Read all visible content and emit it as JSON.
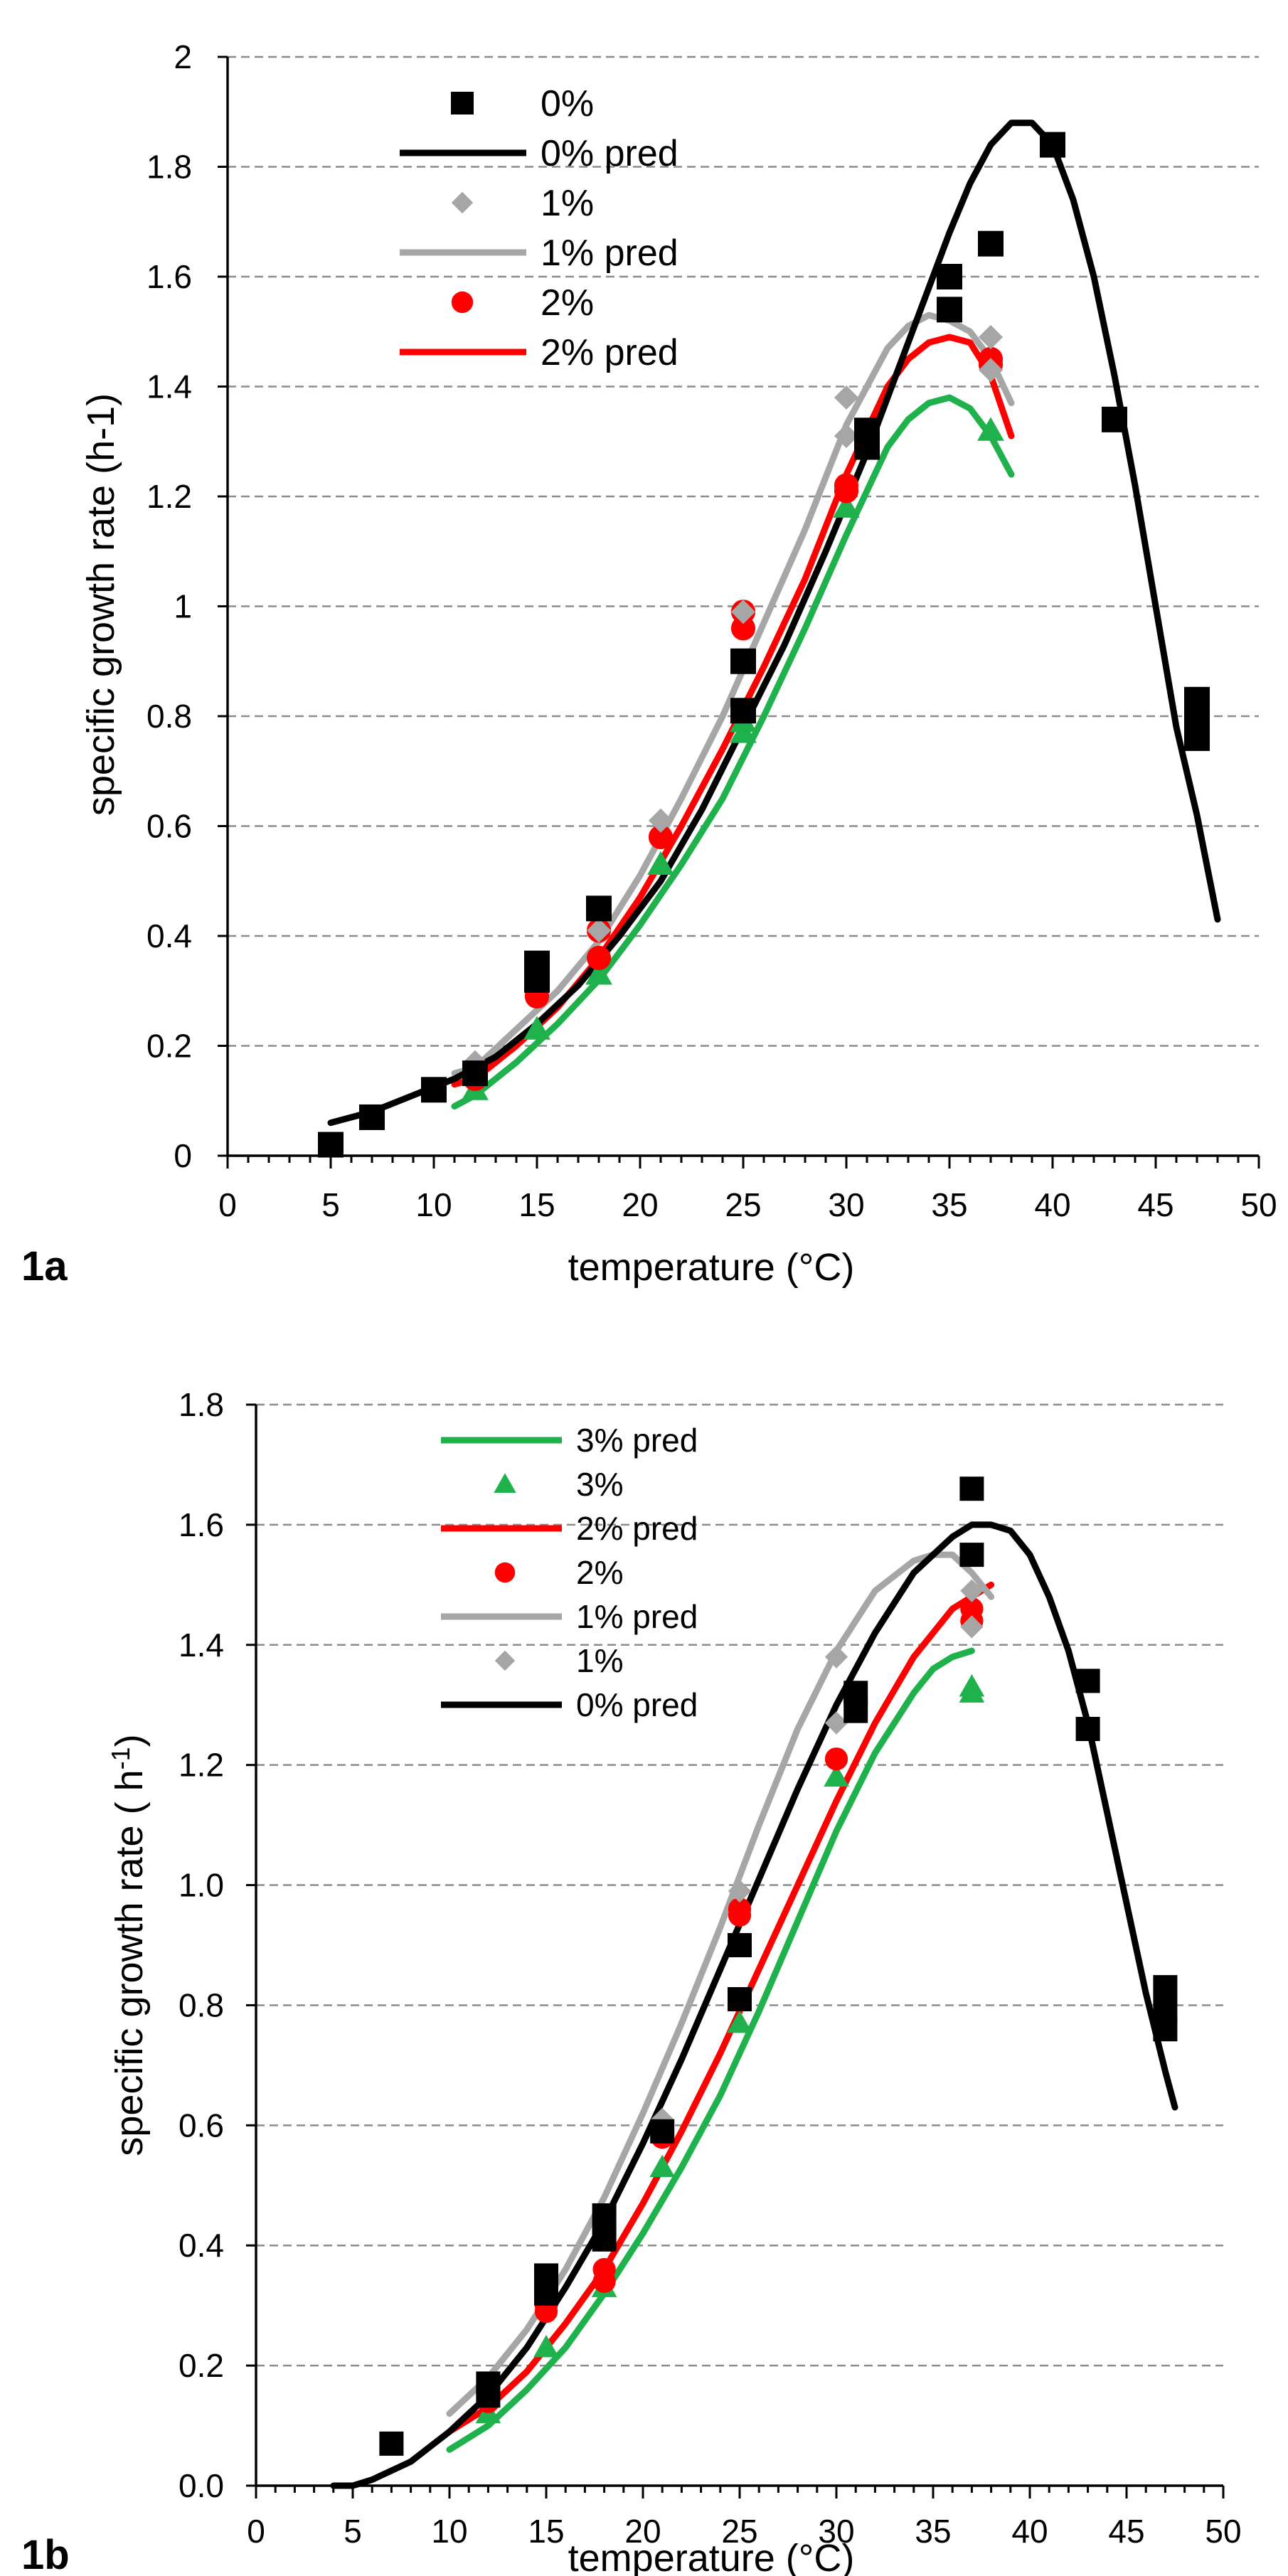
{
  "chart_data": [
    {
      "type": "scatter",
      "panel_label": "1a",
      "xlabel": "temperature (°C)",
      "ylabel": "specific growth rate  (h-1)",
      "xlim": [
        0,
        50
      ],
      "ylim": [
        0,
        2
      ],
      "x_ticks": [
        "0",
        "5",
        "10",
        "15",
        "20",
        "25",
        "30",
        "35",
        "40",
        "45",
        "50"
      ],
      "y_ticks": [
        "0",
        "0.2",
        "0.4",
        "0.6",
        "0.8",
        "1",
        "1.2",
        "1.4",
        "1.6",
        "1.8",
        "2"
      ],
      "grid": "horizontal dashed",
      "legend_position": "top-left",
      "legend": [
        {
          "label": "0%",
          "kind": "marker",
          "series": "0%"
        },
        {
          "label": "0% pred",
          "kind": "line",
          "series": "0% pred"
        },
        {
          "label": "1%",
          "kind": "marker",
          "series": "1%"
        },
        {
          "label": "1% pred",
          "kind": "line",
          "series": "1% pred"
        },
        {
          "label": "2%",
          "kind": "marker",
          "series": "2%"
        },
        {
          "label": "2% pred",
          "kind": "line",
          "series": "2% pred"
        }
      ],
      "series": [
        {
          "name": "3% pred",
          "kind": "line",
          "color": "#1fb14b",
          "x": [
            11,
            12,
            14,
            16,
            18,
            20,
            22,
            24,
            26,
            28,
            30,
            32,
            33,
            34,
            35,
            36,
            37,
            38
          ],
          "y": [
            0.09,
            0.11,
            0.17,
            0.24,
            0.32,
            0.42,
            0.53,
            0.65,
            0.8,
            0.96,
            1.13,
            1.29,
            1.34,
            1.37,
            1.38,
            1.36,
            1.31,
            1.24
          ]
        },
        {
          "name": "2% pred",
          "kind": "line",
          "color": "#ff0000",
          "x": [
            11,
            12,
            14,
            16,
            18,
            20,
            22,
            24,
            26,
            28,
            30,
            32,
            33,
            34,
            35,
            36,
            37,
            38
          ],
          "y": [
            0.13,
            0.14,
            0.2,
            0.27,
            0.36,
            0.47,
            0.6,
            0.74,
            0.89,
            1.05,
            1.24,
            1.4,
            1.45,
            1.48,
            1.49,
            1.48,
            1.42,
            1.31
          ]
        },
        {
          "name": "1% pred",
          "kind": "line",
          "color": "#a6a6a6",
          "x": [
            11,
            12,
            14,
            16,
            18,
            20,
            22,
            24,
            26,
            28,
            30,
            32,
            33,
            34,
            35,
            36,
            37,
            38
          ],
          "y": [
            0.15,
            0.16,
            0.23,
            0.3,
            0.39,
            0.51,
            0.65,
            0.8,
            0.97,
            1.14,
            1.33,
            1.47,
            1.51,
            1.53,
            1.52,
            1.5,
            1.45,
            1.37
          ]
        },
        {
          "name": "0% pred",
          "kind": "line",
          "color": "#000000",
          "x": [
            5,
            7,
            9,
            11,
            13,
            15,
            17,
            19,
            21,
            23,
            25,
            27,
            29,
            31,
            33,
            35,
            36,
            37,
            38,
            39,
            40,
            41,
            42,
            43,
            44,
            45,
            46,
            47,
            48
          ],
          "y": [
            0.06,
            0.08,
            0.11,
            0.14,
            0.18,
            0.24,
            0.31,
            0.4,
            0.5,
            0.63,
            0.78,
            0.93,
            1.1,
            1.28,
            1.48,
            1.68,
            1.77,
            1.84,
            1.88,
            1.88,
            1.84,
            1.74,
            1.6,
            1.42,
            1.22,
            1.0,
            0.78,
            0.62,
            0.43
          ]
        },
        {
          "name": "3%",
          "kind": "marker",
          "marker": "triangle",
          "color": "#1fb14b",
          "x": [
            12,
            15,
            18,
            21,
            25,
            25,
            30,
            37
          ],
          "y": [
            0.12,
            0.23,
            0.33,
            0.53,
            0.77,
            0.79,
            1.18,
            1.32
          ]
        },
        {
          "name": "2%",
          "kind": "marker",
          "marker": "circle",
          "color": "#ff0000",
          "x": [
            12,
            15,
            15,
            18,
            18,
            21,
            25,
            25,
            30,
            30,
            37,
            37
          ],
          "y": [
            0.14,
            0.29,
            0.3,
            0.36,
            0.41,
            0.58,
            0.96,
            0.99,
            1.21,
            1.22,
            1.44,
            1.45
          ]
        },
        {
          "name": "1%",
          "kind": "marker",
          "marker": "diamond",
          "color": "#a6a6a6",
          "x": [
            12,
            15,
            18,
            21,
            25,
            30,
            30,
            37,
            37
          ],
          "y": [
            0.17,
            0.34,
            0.41,
            0.61,
            0.99,
            1.31,
            1.38,
            1.43,
            1.49
          ]
        },
        {
          "name": "0%",
          "kind": "marker",
          "marker": "square",
          "color": "#000000",
          "x": [
            5,
            7,
            10,
            12,
            15,
            15,
            18,
            25,
            25,
            31,
            31,
            35,
            35,
            37,
            40,
            43,
            47,
            47,
            47
          ],
          "y": [
            0.02,
            0.07,
            0.12,
            0.15,
            0.32,
            0.35,
            0.45,
            0.81,
            0.9,
            1.29,
            1.32,
            1.54,
            1.6,
            1.66,
            1.84,
            1.34,
            0.76,
            0.79,
            0.83
          ]
        }
      ]
    },
    {
      "type": "scatter",
      "panel_label": "1b",
      "xlabel": "temperature (°C)",
      "ylabel": "specific growth rate ( h",
      "ylabel_sup": "-1",
      "ylabel_end": ")",
      "xlim": [
        0,
        50
      ],
      "ylim": [
        0,
        1.8
      ],
      "x_ticks": [
        "0",
        "5",
        "10",
        "15",
        "20",
        "25",
        "30",
        "35",
        "40",
        "45",
        "50"
      ],
      "y_ticks": [
        "0.0",
        "0.2",
        "0.4",
        "0.6",
        "0.8",
        "1.0",
        "1.2",
        "1.4",
        "1.6",
        "1.8"
      ],
      "grid": "horizontal dashed",
      "legend_position": "top-left",
      "legend": [
        {
          "label": "3% pred",
          "kind": "line",
          "series": "3% pred"
        },
        {
          "label": "3%",
          "kind": "marker",
          "series": "3%"
        },
        {
          "label": "2% pred",
          "kind": "line",
          "series": "2% pred"
        },
        {
          "label": "2%",
          "kind": "marker",
          "series": "2%"
        },
        {
          "label": "1% pred",
          "kind": "line",
          "series": "1% pred"
        },
        {
          "label": "1%",
          "kind": "marker",
          "series": "1%"
        },
        {
          "label": "0% pred",
          "kind": "line",
          "series": "0% pred"
        }
      ],
      "series": [
        {
          "name": "3% pred",
          "kind": "line",
          "color": "#1fb14b",
          "x": [
            10,
            12,
            14,
            16,
            18,
            20,
            22,
            24,
            26,
            28,
            30,
            32,
            34,
            35,
            36,
            37
          ],
          "y": [
            0.06,
            0.1,
            0.16,
            0.23,
            0.32,
            0.42,
            0.53,
            0.65,
            0.79,
            0.94,
            1.09,
            1.22,
            1.32,
            1.36,
            1.38,
            1.39
          ]
        },
        {
          "name": "2% pred",
          "kind": "line",
          "color": "#ff0000",
          "x": [
            10,
            12,
            14,
            16,
            18,
            20,
            22,
            24,
            26,
            28,
            30,
            32,
            34,
            35,
            36,
            37,
            38
          ],
          "y": [
            0.09,
            0.13,
            0.19,
            0.27,
            0.36,
            0.47,
            0.59,
            0.72,
            0.86,
            1.0,
            1.14,
            1.27,
            1.38,
            1.42,
            1.46,
            1.48,
            1.5
          ]
        },
        {
          "name": "1% pred",
          "kind": "line",
          "color": "#a6a6a6",
          "x": [
            10,
            12,
            14,
            16,
            18,
            20,
            22,
            24,
            26,
            28,
            30,
            32,
            34,
            35,
            36,
            37,
            38
          ],
          "y": [
            0.12,
            0.18,
            0.26,
            0.36,
            0.48,
            0.62,
            0.77,
            0.93,
            1.1,
            1.26,
            1.39,
            1.49,
            1.54,
            1.55,
            1.55,
            1.52,
            1.48
          ]
        },
        {
          "name": "0% pred",
          "kind": "line",
          "color": "#000000",
          "x": [
            4,
            5,
            6,
            8,
            10,
            12,
            14,
            16,
            18,
            20,
            22,
            24,
            26,
            28,
            30,
            32,
            34,
            36,
            37,
            38,
            39,
            40,
            41,
            42,
            43,
            44,
            45,
            46,
            47,
            47.5
          ],
          "y": [
            0.0,
            0.0,
            0.01,
            0.04,
            0.09,
            0.15,
            0.23,
            0.33,
            0.44,
            0.57,
            0.71,
            0.86,
            1.01,
            1.16,
            1.3,
            1.42,
            1.52,
            1.58,
            1.6,
            1.6,
            1.59,
            1.55,
            1.48,
            1.39,
            1.27,
            1.12,
            0.97,
            0.82,
            0.69,
            0.63
          ]
        },
        {
          "name": "3%",
          "kind": "marker",
          "marker": "triangle",
          "color": "#1fb14b",
          "x": [
            12,
            15,
            18,
            21,
            25,
            30,
            37,
            37
          ],
          "y": [
            0.12,
            0.23,
            0.33,
            0.53,
            0.77,
            1.18,
            1.32,
            1.33
          ]
        },
        {
          "name": "2%",
          "kind": "marker",
          "marker": "circle",
          "color": "#ff0000",
          "x": [
            12,
            15,
            15,
            18,
            18,
            21,
            25,
            25,
            30,
            37,
            37
          ],
          "y": [
            0.14,
            0.29,
            0.3,
            0.34,
            0.36,
            0.58,
            0.95,
            0.96,
            1.21,
            1.44,
            1.46
          ]
        },
        {
          "name": "1%",
          "kind": "marker",
          "marker": "diamond",
          "color": "#a6a6a6",
          "x": [
            12,
            15,
            18,
            21,
            25,
            30,
            30,
            37,
            37
          ],
          "y": [
            0.17,
            0.34,
            0.41,
            0.61,
            0.99,
            1.27,
            1.38,
            1.43,
            1.49
          ]
        },
        {
          "name": "0%",
          "kind": "marker",
          "marker": "square",
          "color": "#000000",
          "x": [
            7,
            12,
            12,
            15,
            15,
            18,
            18,
            21,
            25,
            25,
            31,
            31,
            37,
            37,
            43,
            43,
            47,
            47,
            47
          ],
          "y": [
            0.07,
            0.15,
            0.17,
            0.32,
            0.35,
            0.41,
            0.45,
            0.59,
            0.81,
            0.9,
            1.29,
            1.32,
            1.55,
            1.66,
            1.26,
            1.34,
            0.76,
            0.79,
            0.83
          ]
        }
      ]
    }
  ]
}
